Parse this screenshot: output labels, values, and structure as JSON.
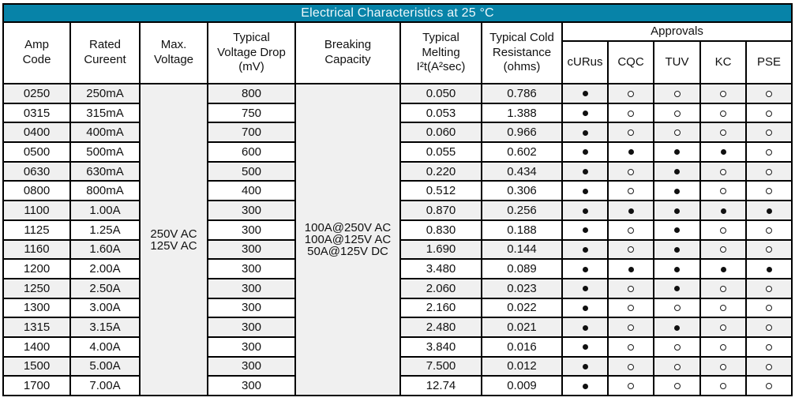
{
  "title_bar": {
    "text": "Electrical Characteristics at 25 °C"
  },
  "colors": {
    "title_bg": "#0783A8",
    "title_fg": "#EFF8FB",
    "stripe": "#F0F0F0",
    "border": "#000000"
  },
  "columns": {
    "amp_code": "Amp\nCode",
    "rated_current": "Rated\nCureent",
    "max_voltage": "Max.\nVoltage",
    "voltage_drop": "Typical\nVoltage Drop\n(mV)",
    "breaking_capacity": "Breaking\nCapacity",
    "melting_i2t": "Typical\nMelting\nI²t(A²sec)",
    "cold_resistance": "Typical Cold\nResistance\n(ohms)",
    "approvals": "Approvals",
    "approval_agencies": [
      "cURus",
      "CQC",
      "TUV",
      "KC",
      "PSE"
    ]
  },
  "merged": {
    "max_voltage_lines": "250V AC\n125V AC",
    "breaking_capacity_lines": "100A@250V AC\n100A@125V AC\n50A@125V DC"
  },
  "legend": {
    "filled_mark_meaning": "approved-filled-dot",
    "open_mark_meaning": "not-approved-open-circle"
  },
  "rows": [
    {
      "amp_code": "0250",
      "rated_current": "250mA",
      "voltage_drop": "800",
      "melting_i2t": "0.050",
      "cold_resistance": "0.786",
      "approvals": [
        "filled",
        "open",
        "open",
        "open",
        "open"
      ]
    },
    {
      "amp_code": "0315",
      "rated_current": "315mA",
      "voltage_drop": "750",
      "melting_i2t": "0.053",
      "cold_resistance": "1.388",
      "approvals": [
        "filled",
        "open",
        "open",
        "open",
        "open"
      ]
    },
    {
      "amp_code": "0400",
      "rated_current": "400mA",
      "voltage_drop": "700",
      "melting_i2t": "0.060",
      "cold_resistance": "0.966",
      "approvals": [
        "filled",
        "open",
        "open",
        "open",
        "open"
      ]
    },
    {
      "amp_code": "0500",
      "rated_current": "500mA",
      "voltage_drop": "600",
      "melting_i2t": "0.055",
      "cold_resistance": "0.602",
      "approvals": [
        "filled",
        "filled",
        "filled",
        "filled",
        "open"
      ]
    },
    {
      "amp_code": "0630",
      "rated_current": "630mA",
      "voltage_drop": "500",
      "melting_i2t": "0.220",
      "cold_resistance": "0.434",
      "approvals": [
        "filled",
        "open",
        "filled",
        "open",
        "open"
      ]
    },
    {
      "amp_code": "0800",
      "rated_current": "800mA",
      "voltage_drop": "400",
      "melting_i2t": "0.512",
      "cold_resistance": "0.306",
      "approvals": [
        "filled",
        "open",
        "filled",
        "open",
        "open"
      ]
    },
    {
      "amp_code": "1100",
      "rated_current": "1.00A",
      "voltage_drop": "300",
      "melting_i2t": "0.870",
      "cold_resistance": "0.256",
      "approvals": [
        "filled",
        "filled",
        "filled",
        "filled",
        "filled"
      ]
    },
    {
      "amp_code": "1125",
      "rated_current": "1.25A",
      "voltage_drop": "300",
      "melting_i2t": "0.830",
      "cold_resistance": "0.188",
      "approvals": [
        "filled",
        "open",
        "filled",
        "open",
        "open"
      ]
    },
    {
      "amp_code": "1160",
      "rated_current": "1.60A",
      "voltage_drop": "300",
      "melting_i2t": "1.690",
      "cold_resistance": "0.144",
      "approvals": [
        "filled",
        "open",
        "filled",
        "open",
        "open"
      ]
    },
    {
      "amp_code": "1200",
      "rated_current": "2.00A",
      "voltage_drop": "300",
      "melting_i2t": "3.480",
      "cold_resistance": "0.089",
      "approvals": [
        "filled",
        "filled",
        "filled",
        "filled",
        "filled"
      ]
    },
    {
      "amp_code": "1250",
      "rated_current": "2.50A",
      "voltage_drop": "300",
      "melting_i2t": "2.060",
      "cold_resistance": "0.023",
      "approvals": [
        "filled",
        "open",
        "filled",
        "open",
        "open"
      ]
    },
    {
      "amp_code": "1300",
      "rated_current": "3.00A",
      "voltage_drop": "300",
      "melting_i2t": "2.160",
      "cold_resistance": "0.022",
      "approvals": [
        "filled",
        "open",
        "open",
        "open",
        "open"
      ]
    },
    {
      "amp_code": "1315",
      "rated_current": "3.15A",
      "voltage_drop": "300",
      "melting_i2t": "2.480",
      "cold_resistance": "0.021",
      "approvals": [
        "filled",
        "open",
        "filled",
        "open",
        "open"
      ]
    },
    {
      "amp_code": "1400",
      "rated_current": "4.00A",
      "voltage_drop": "300",
      "melting_i2t": "3.840",
      "cold_resistance": "0.016",
      "approvals": [
        "filled",
        "open",
        "open",
        "open",
        "open"
      ]
    },
    {
      "amp_code": "1500",
      "rated_current": "5.00A",
      "voltage_drop": "300",
      "melting_i2t": "7.500",
      "cold_resistance": "0.012",
      "approvals": [
        "filled",
        "open",
        "open",
        "open",
        "open"
      ]
    },
    {
      "amp_code": "1700",
      "rated_current": "7.00A",
      "voltage_drop": "300",
      "melting_i2t": "12.74",
      "cold_resistance": "0.009",
      "approvals": [
        "filled",
        "open",
        "open",
        "open",
        "open"
      ]
    }
  ]
}
